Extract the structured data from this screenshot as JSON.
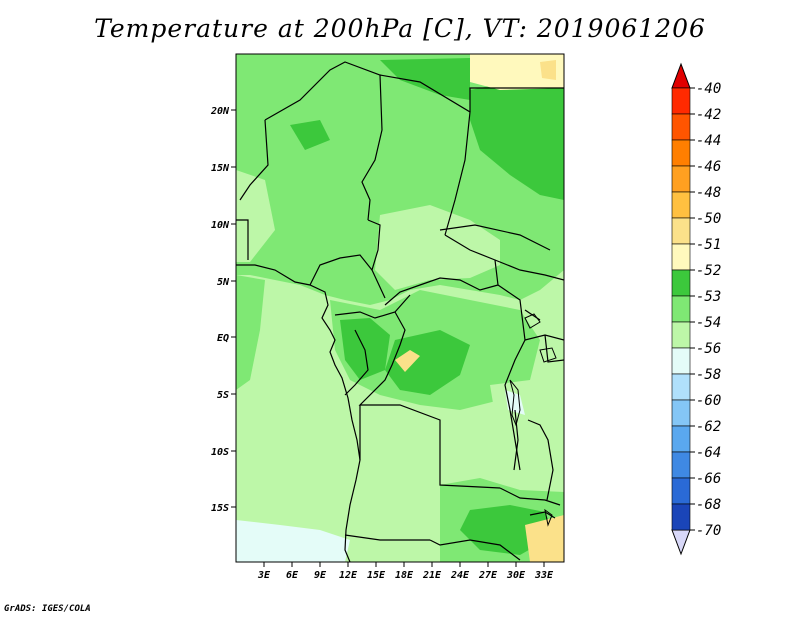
{
  "title": "Temperature at 200hPa [C], VT: 2019061206",
  "credit": "GrADS: IGES/COLA",
  "map": {
    "lat_ticks": [
      "20N",
      "15N",
      "10N",
      "5N",
      "EQ",
      "5S",
      "10S",
      "15S"
    ],
    "lon_ticks": [
      "3E",
      "6E",
      "9E",
      "12E",
      "15E",
      "18E",
      "21E",
      "24E",
      "27E",
      "30E",
      "33E"
    ]
  },
  "colorbar": {
    "levels": [
      {
        "label": "-40",
        "color": "#ff2a00"
      },
      {
        "label": "-42",
        "color": "#ff5500"
      },
      {
        "label": "-44",
        "color": "#ff7f00"
      },
      {
        "label": "-46",
        "color": "#ffa020"
      },
      {
        "label": "-48",
        "color": "#ffc040"
      },
      {
        "label": "-50",
        "color": "#fbe18a"
      },
      {
        "label": "-51",
        "color": "#fff9bd"
      },
      {
        "label": "-52",
        "color": "#3cc83c"
      },
      {
        "label": "-53",
        "color": "#7fe874"
      },
      {
        "label": "-54",
        "color": "#bdf7a8"
      },
      {
        "label": "-56",
        "color": "#e4fcf8"
      },
      {
        "label": "-58",
        "color": "#b0e0fb"
      },
      {
        "label": "-60",
        "color": "#84c6f6"
      },
      {
        "label": "-62",
        "color": "#5aa8ef"
      },
      {
        "label": "-64",
        "color": "#3f89e3"
      },
      {
        "label": "-66",
        "color": "#2a6ad6"
      },
      {
        "label": "-68",
        "color": "#1a45b8"
      },
      {
        "label": "-70",
        "color": "#0c1f90"
      }
    ],
    "top_color": "#e00000",
    "bottom_color": "#d8d8f8"
  }
}
